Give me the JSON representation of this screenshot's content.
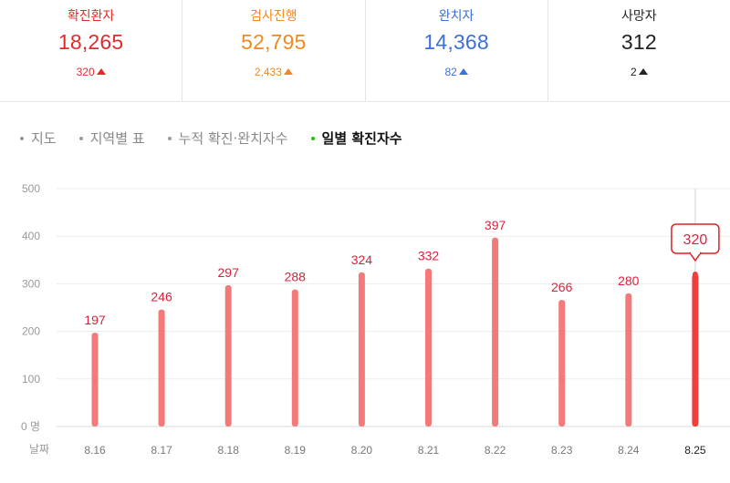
{
  "stats": [
    {
      "label": "확진환자",
      "value": "18,265",
      "delta": "320",
      "color": "#e02b2b"
    },
    {
      "label": "검사진행",
      "value": "52,795",
      "delta": "2,433",
      "color": "#ee8a1e"
    },
    {
      "label": "완치자",
      "value": "14,368",
      "delta": "82",
      "color": "#3d6fd6"
    },
    {
      "label": "사망자",
      "value": "312",
      "delta": "2",
      "color": "#222222"
    }
  ],
  "tabs": [
    {
      "label": "지도",
      "active": false
    },
    {
      "label": "지역별 표",
      "active": false
    },
    {
      "label": "누적 확진·완치자수",
      "active": false
    },
    {
      "label": "일별 확진자수",
      "active": true
    }
  ],
  "chart_data": {
    "type": "bar",
    "categories": [
      "8.16",
      "8.17",
      "8.18",
      "8.19",
      "8.20",
      "8.21",
      "8.22",
      "8.23",
      "8.24",
      "8.25"
    ],
    "values": [
      197,
      246,
      297,
      288,
      324,
      332,
      397,
      266,
      280,
      320
    ],
    "yticks": [
      "0 명",
      "100",
      "200",
      "300",
      "400",
      "500"
    ],
    "ylim": [
      0,
      500
    ],
    "xlabel": "날짜",
    "highlight_index": 9,
    "bar_color": "#f47a7a",
    "highlight_color": "#f03e3e",
    "label_color": "#e01e3c"
  }
}
